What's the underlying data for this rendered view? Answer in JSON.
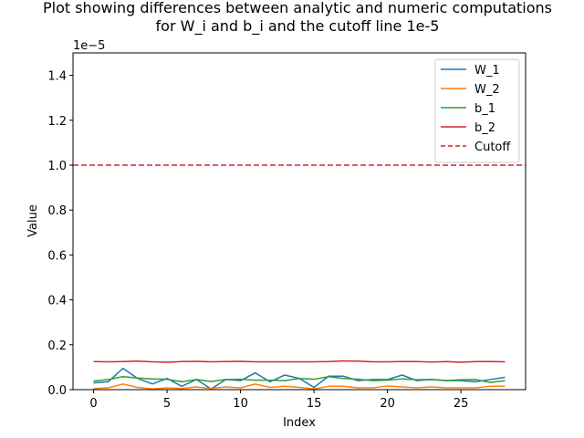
{
  "chart_data": {
    "type": "line",
    "title_lines": [
      "Plot showing differences between analytic and numeric computations",
      "for W_i and b_i and the cutoff line 1e-5"
    ],
    "xlabel": "Index",
    "ylabel": "Value",
    "scale_label": "1e−5",
    "xlim": [
      -1.4,
      29.4
    ],
    "ylim": [
      0,
      1.5
    ],
    "x_ticks": [
      0,
      5,
      10,
      15,
      20,
      25
    ],
    "x_tick_labels": [
      "0",
      "5",
      "10",
      "15",
      "20",
      "25"
    ],
    "y_ticks": [
      0,
      0.2,
      0.4,
      0.6,
      0.8,
      1.0,
      1.2,
      1.4
    ],
    "y_tick_labels": [
      "0.0",
      "0.2",
      "0.4",
      "0.6",
      "0.8",
      "1.0",
      "1.2",
      "1.4"
    ],
    "x": [
      0,
      1,
      2,
      3,
      4,
      5,
      6,
      7,
      8,
      9,
      10,
      11,
      12,
      13,
      14,
      15,
      16,
      17,
      18,
      19,
      20,
      21,
      22,
      23,
      24,
      25,
      26,
      27,
      28
    ],
    "series": [
      {
        "name": "W_1",
        "color": "#1f77b4",
        "values": [
          0.03,
          0.035,
          0.095,
          0.05,
          0.025,
          0.05,
          0.015,
          0.045,
          0.003,
          0.045,
          0.04,
          0.075,
          0.035,
          0.065,
          0.05,
          0.01,
          0.06,
          0.06,
          0.04,
          0.045,
          0.045,
          0.065,
          0.04,
          0.045,
          0.04,
          0.04,
          0.035,
          0.045,
          0.055
        ]
      },
      {
        "name": "W_2",
        "color": "#ff7f0e",
        "values": [
          0.005,
          0.008,
          0.025,
          0.01,
          0.003,
          0.008,
          0.005,
          0.012,
          0.005,
          0.012,
          0.008,
          0.025,
          0.01,
          0.015,
          0.01,
          0.003,
          0.015,
          0.015,
          0.008,
          0.008,
          0.016,
          0.012,
          0.008,
          0.012,
          0.008,
          0.008,
          0.008,
          0.015,
          0.015
        ]
      },
      {
        "name": "b_1",
        "color": "#2ca02c",
        "values": [
          0.038,
          0.045,
          0.058,
          0.052,
          0.048,
          0.046,
          0.035,
          0.045,
          0.036,
          0.045,
          0.046,
          0.042,
          0.042,
          0.04,
          0.05,
          0.046,
          0.058,
          0.05,
          0.046,
          0.04,
          0.042,
          0.048,
          0.044,
          0.045,
          0.04,
          0.044,
          0.045,
          0.032,
          0.04
        ]
      },
      {
        "name": "b_2",
        "color": "#d62728",
        "values": [
          0.125,
          0.124,
          0.125,
          0.127,
          0.124,
          0.122,
          0.125,
          0.126,
          0.124,
          0.125,
          0.126,
          0.124,
          0.124,
          0.124,
          0.124,
          0.124,
          0.125,
          0.128,
          0.127,
          0.124,
          0.124,
          0.125,
          0.125,
          0.123,
          0.125,
          0.122,
          0.125,
          0.125,
          0.124
        ]
      }
    ],
    "cutoff": {
      "name": "Cutoff",
      "value": 1.0,
      "color": "#d62728",
      "style": "dashed"
    },
    "legend_position": "top-right",
    "grid": false
  }
}
